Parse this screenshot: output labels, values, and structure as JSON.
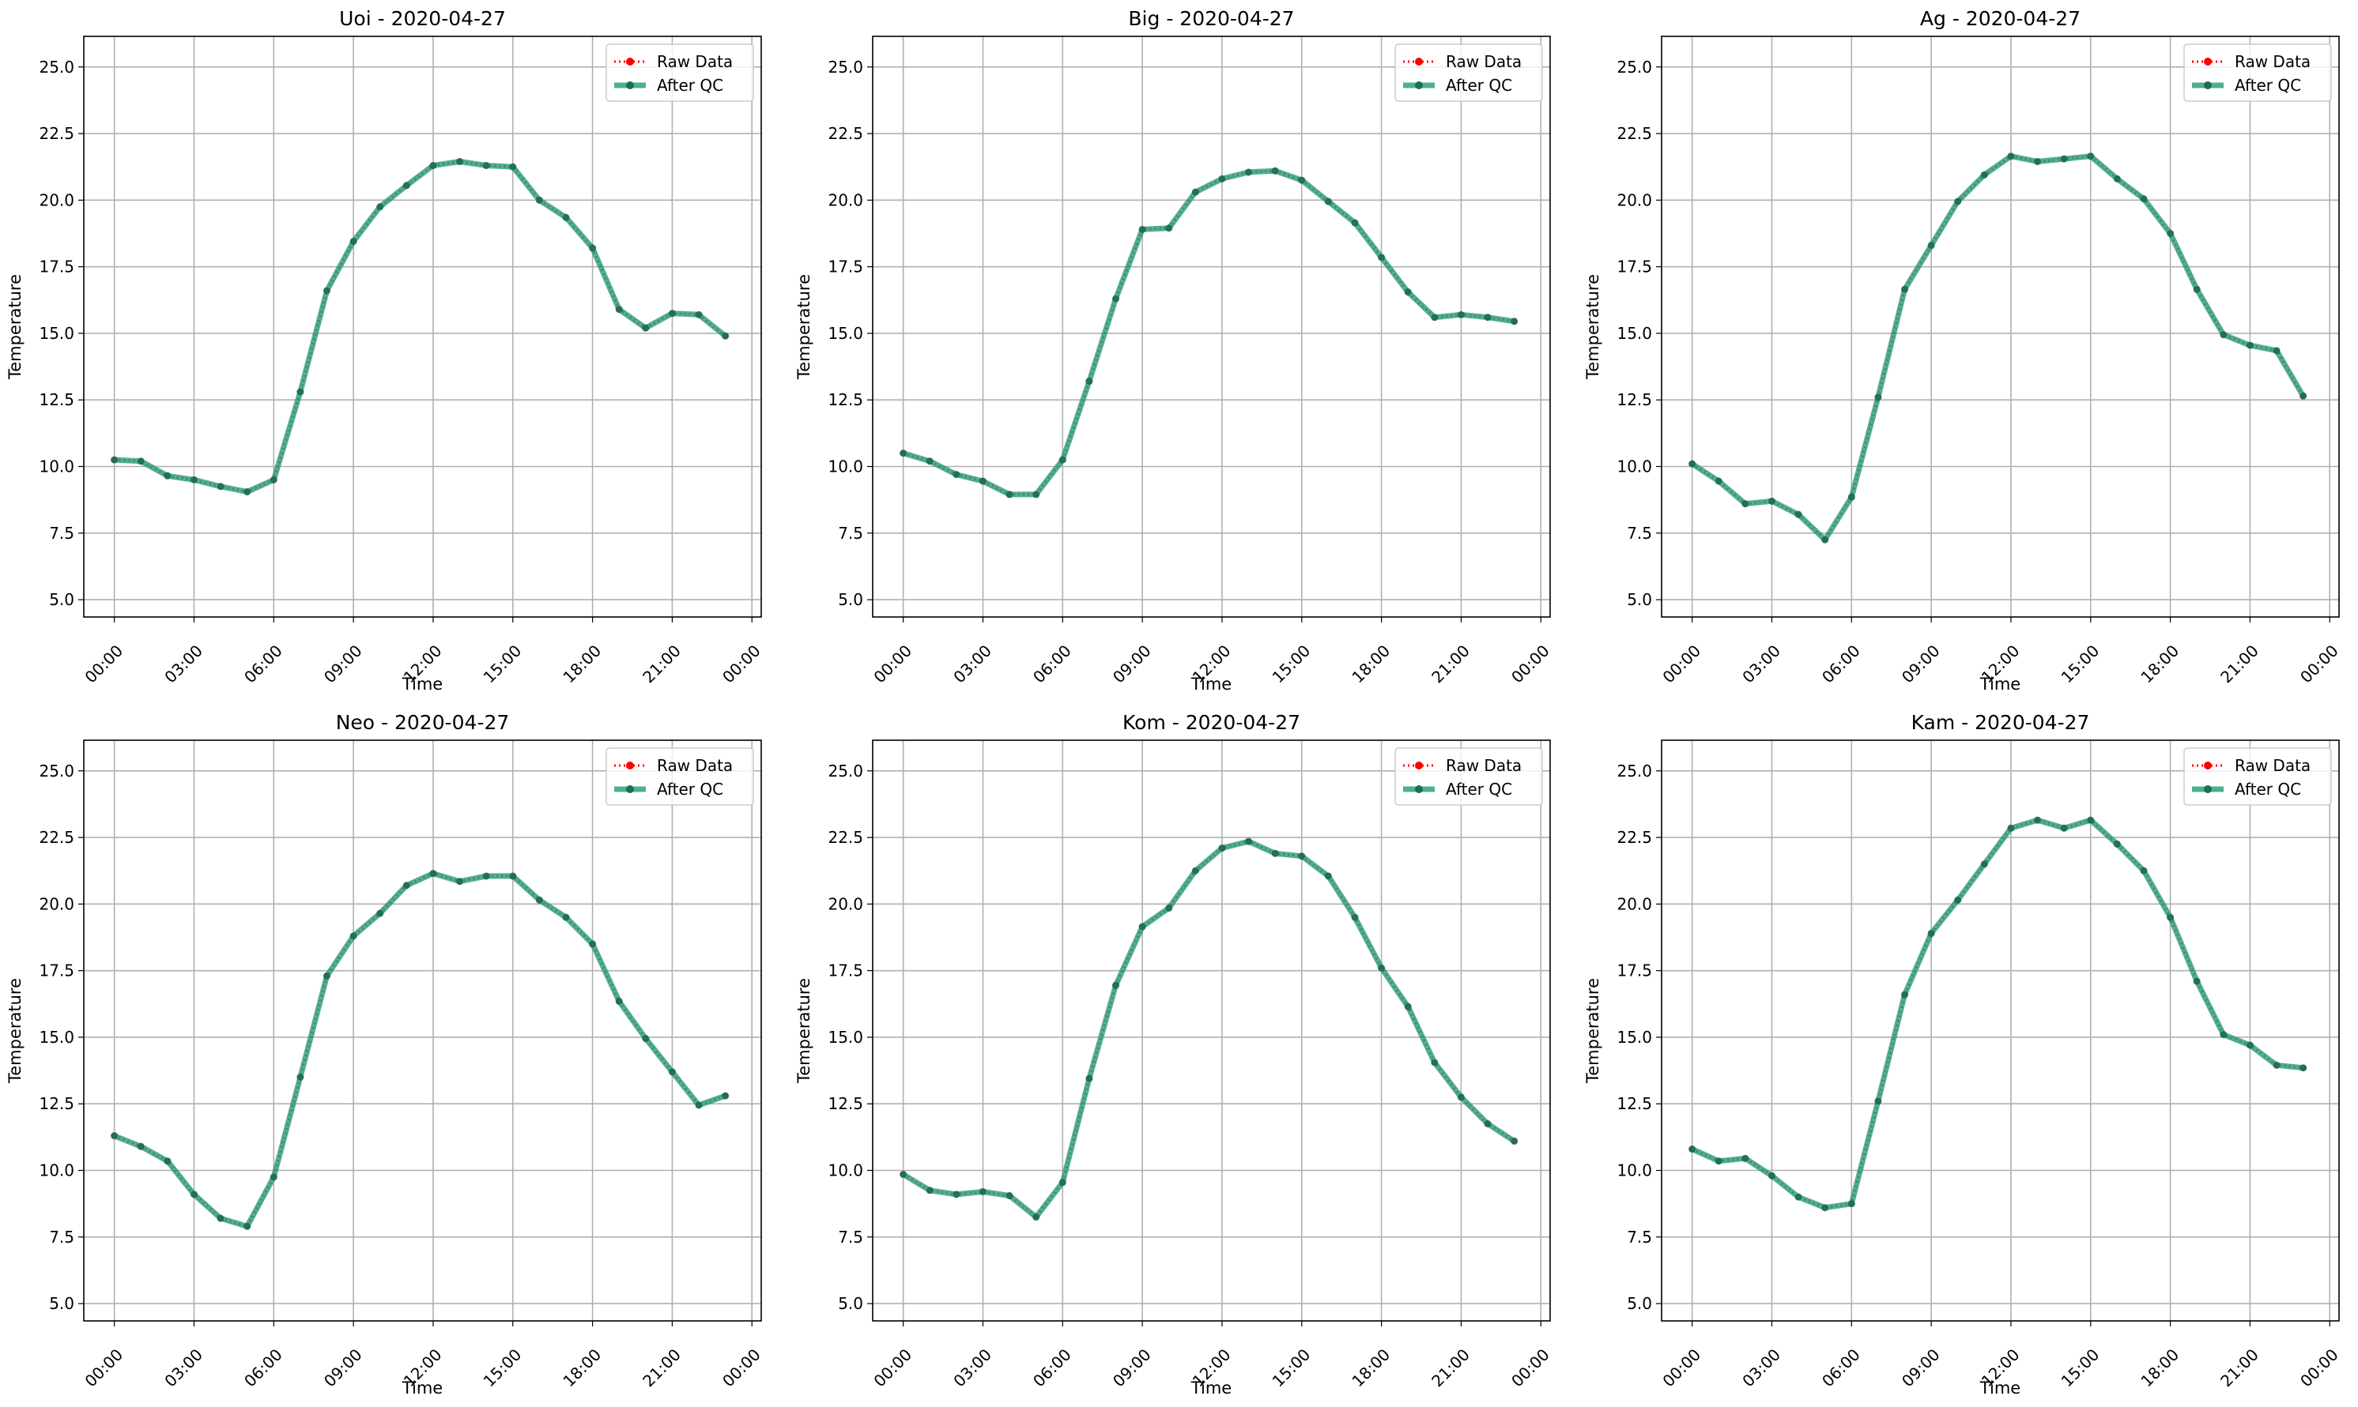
{
  "chart_data": [
    {
      "type": "line",
      "title": "Uoi - 2020-04-27",
      "xlabel": "Time",
      "ylabel": "Temperature",
      "xlim": [
        "00:00",
        "24:00"
      ],
      "ylim": [
        5.0,
        25.0
      ],
      "x_ticks": [
        "00:00",
        "03:00",
        "06:00",
        "09:00",
        "12:00",
        "15:00",
        "18:00",
        "21:00",
        "00:00"
      ],
      "y_ticks": [
        "5.0",
        "7.5",
        "10.0",
        "12.5",
        "15.0",
        "17.5",
        "20.0",
        "22.5",
        "25.0"
      ],
      "grid": true,
      "legend": "top-right",
      "x": [
        "00:00",
        "01:00",
        "02:00",
        "03:00",
        "04:00",
        "05:00",
        "06:00",
        "07:00",
        "08:00",
        "09:00",
        "10:00",
        "11:00",
        "12:00",
        "13:00",
        "14:00",
        "15:00",
        "16:00",
        "17:00",
        "18:00",
        "19:00",
        "20:00",
        "21:00",
        "22:00",
        "23:00"
      ],
      "series": [
        {
          "name": "Raw Data",
          "color": "#ff0000",
          "values": [
            10.25,
            10.2,
            9.65,
            9.5,
            9.25,
            9.05,
            9.5,
            12.8,
            16.6,
            18.45,
            19.75,
            20.55,
            21.3,
            21.45,
            21.3,
            21.25,
            20.0,
            19.35,
            18.2,
            15.9,
            15.2,
            15.75,
            15.7,
            14.9
          ]
        },
        {
          "name": "After QC",
          "color": "#2a9d78",
          "values": [
            10.25,
            10.2,
            9.65,
            9.5,
            9.25,
            9.05,
            9.5,
            12.8,
            16.6,
            18.45,
            19.75,
            20.55,
            21.3,
            21.45,
            21.3,
            21.25,
            20.0,
            19.35,
            18.2,
            15.9,
            15.2,
            15.75,
            15.7,
            14.9
          ]
        }
      ]
    },
    {
      "type": "line",
      "title": "Big - 2020-04-27",
      "xlabel": "Time",
      "ylabel": "Temperature",
      "xlim": [
        "00:00",
        "24:00"
      ],
      "ylim": [
        5.0,
        25.0
      ],
      "x_ticks": [
        "00:00",
        "03:00",
        "06:00",
        "09:00",
        "12:00",
        "15:00",
        "18:00",
        "21:00",
        "00:00"
      ],
      "y_ticks": [
        "5.0",
        "7.5",
        "10.0",
        "12.5",
        "15.0",
        "17.5",
        "20.0",
        "22.5",
        "25.0"
      ],
      "grid": true,
      "legend": "top-right",
      "x": [
        "00:00",
        "01:00",
        "02:00",
        "03:00",
        "04:00",
        "05:00",
        "06:00",
        "07:00",
        "08:00",
        "09:00",
        "10:00",
        "11:00",
        "12:00",
        "13:00",
        "14:00",
        "15:00",
        "16:00",
        "17:00",
        "18:00",
        "19:00",
        "20:00",
        "21:00",
        "22:00",
        "23:00"
      ],
      "series": [
        {
          "name": "Raw Data",
          "color": "#ff0000",
          "values": [
            10.5,
            10.2,
            9.7,
            9.45,
            8.95,
            8.95,
            10.25,
            13.2,
            16.3,
            18.9,
            18.95,
            20.3,
            20.8,
            21.05,
            21.1,
            20.75,
            19.95,
            19.15,
            17.85,
            16.55,
            15.6,
            15.7,
            15.6,
            15.45
          ]
        },
        {
          "name": "After QC",
          "color": "#2a9d78",
          "values": [
            10.5,
            10.2,
            9.7,
            9.45,
            8.95,
            8.95,
            10.25,
            13.2,
            16.3,
            18.9,
            18.95,
            20.3,
            20.8,
            21.05,
            21.1,
            20.75,
            19.95,
            19.15,
            17.85,
            16.55,
            15.6,
            15.7,
            15.6,
            15.45
          ]
        }
      ]
    },
    {
      "type": "line",
      "title": "Ag - 2020-04-27",
      "xlabel": "Time",
      "ylabel": "Temperature",
      "xlim": [
        "00:00",
        "24:00"
      ],
      "ylim": [
        5.0,
        25.0
      ],
      "x_ticks": [
        "00:00",
        "03:00",
        "06:00",
        "09:00",
        "12:00",
        "15:00",
        "18:00",
        "21:00",
        "00:00"
      ],
      "y_ticks": [
        "5.0",
        "7.5",
        "10.0",
        "12.5",
        "15.0",
        "17.5",
        "20.0",
        "22.5",
        "25.0"
      ],
      "grid": true,
      "legend": "top-right",
      "x": [
        "00:00",
        "01:00",
        "02:00",
        "03:00",
        "04:00",
        "05:00",
        "06:00",
        "07:00",
        "08:00",
        "09:00",
        "10:00",
        "11:00",
        "12:00",
        "13:00",
        "14:00",
        "15:00",
        "16:00",
        "17:00",
        "18:00",
        "19:00",
        "20:00",
        "21:00",
        "22:00",
        "23:00"
      ],
      "series": [
        {
          "name": "Raw Data",
          "color": "#ff0000",
          "values": [
            10.1,
            9.45,
            8.6,
            8.7,
            8.2,
            7.25,
            8.85,
            12.6,
            16.65,
            18.3,
            19.95,
            20.95,
            21.65,
            21.45,
            21.55,
            21.65,
            20.8,
            20.05,
            18.75,
            16.65,
            14.95,
            14.55,
            14.35,
            12.65
          ]
        },
        {
          "name": "After QC",
          "color": "#2a9d78",
          "values": [
            10.1,
            9.45,
            8.6,
            8.7,
            8.2,
            7.25,
            8.85,
            12.6,
            16.65,
            18.3,
            19.95,
            20.95,
            21.65,
            21.45,
            21.55,
            21.65,
            20.8,
            20.05,
            18.75,
            16.65,
            14.95,
            14.55,
            14.35,
            12.65
          ]
        }
      ]
    },
    {
      "type": "line",
      "title": "Neo - 2020-04-27",
      "xlabel": "Time",
      "ylabel": "Temperature",
      "xlim": [
        "00:00",
        "24:00"
      ],
      "ylim": [
        5.0,
        25.0
      ],
      "x_ticks": [
        "00:00",
        "03:00",
        "06:00",
        "09:00",
        "12:00",
        "15:00",
        "18:00",
        "21:00",
        "00:00"
      ],
      "y_ticks": [
        "5.0",
        "7.5",
        "10.0",
        "12.5",
        "15.0",
        "17.5",
        "20.0",
        "22.5",
        "25.0"
      ],
      "grid": true,
      "legend": "top-right",
      "x": [
        "00:00",
        "01:00",
        "02:00",
        "03:00",
        "04:00",
        "05:00",
        "06:00",
        "07:00",
        "08:00",
        "09:00",
        "10:00",
        "11:00",
        "12:00",
        "13:00",
        "14:00",
        "15:00",
        "16:00",
        "17:00",
        "18:00",
        "19:00",
        "20:00",
        "21:00",
        "22:00",
        "23:00"
      ],
      "series": [
        {
          "name": "Raw Data",
          "color": "#ff0000",
          "values": [
            11.3,
            10.9,
            10.35,
            9.1,
            8.2,
            7.9,
            9.75,
            13.5,
            17.3,
            18.8,
            19.65,
            20.7,
            21.15,
            20.85,
            21.05,
            21.05,
            20.15,
            19.5,
            18.5,
            16.35,
            14.95,
            13.7,
            12.45,
            12.8
          ]
        },
        {
          "name": "After QC",
          "color": "#2a9d78",
          "values": [
            11.3,
            10.9,
            10.35,
            9.1,
            8.2,
            7.9,
            9.75,
            13.5,
            17.3,
            18.8,
            19.65,
            20.7,
            21.15,
            20.85,
            21.05,
            21.05,
            20.15,
            19.5,
            18.5,
            16.35,
            14.95,
            13.7,
            12.45,
            12.8
          ]
        }
      ]
    },
    {
      "type": "line",
      "title": "Kom - 2020-04-27",
      "xlabel": "Time",
      "ylabel": "Temperature",
      "xlim": [
        "00:00",
        "24:00"
      ],
      "ylim": [
        5.0,
        25.0
      ],
      "x_ticks": [
        "00:00",
        "03:00",
        "06:00",
        "09:00",
        "12:00",
        "15:00",
        "18:00",
        "21:00",
        "00:00"
      ],
      "y_ticks": [
        "5.0",
        "7.5",
        "10.0",
        "12.5",
        "15.0",
        "17.5",
        "20.0",
        "22.5",
        "25.0"
      ],
      "grid": true,
      "legend": "top-right",
      "x": [
        "00:00",
        "01:00",
        "02:00",
        "03:00",
        "04:00",
        "05:00",
        "06:00",
        "07:00",
        "08:00",
        "09:00",
        "10:00",
        "11:00",
        "12:00",
        "13:00",
        "14:00",
        "15:00",
        "16:00",
        "17:00",
        "18:00",
        "19:00",
        "20:00",
        "21:00",
        "22:00",
        "23:00"
      ],
      "series": [
        {
          "name": "Raw Data",
          "color": "#ff0000",
          "values": [
            9.85,
            9.25,
            9.1,
            9.2,
            9.05,
            8.25,
            9.55,
            13.45,
            16.95,
            19.15,
            19.85,
            21.25,
            22.1,
            22.35,
            21.9,
            21.8,
            21.05,
            19.5,
            17.6,
            16.15,
            14.05,
            12.75,
            11.75,
            11.1
          ]
        },
        {
          "name": "After QC",
          "color": "#2a9d78",
          "values": [
            9.85,
            9.25,
            9.1,
            9.2,
            9.05,
            8.25,
            9.55,
            13.45,
            16.95,
            19.15,
            19.85,
            21.25,
            22.1,
            22.35,
            21.9,
            21.8,
            21.05,
            19.5,
            17.6,
            16.15,
            14.05,
            12.75,
            11.75,
            11.1
          ]
        }
      ]
    },
    {
      "type": "line",
      "title": "Kam - 2020-04-27",
      "xlabel": "Time",
      "ylabel": "Temperature",
      "xlim": [
        "00:00",
        "24:00"
      ],
      "ylim": [
        5.0,
        25.0
      ],
      "x_ticks": [
        "00:00",
        "03:00",
        "06:00",
        "09:00",
        "12:00",
        "15:00",
        "18:00",
        "21:00",
        "00:00"
      ],
      "y_ticks": [
        "5.0",
        "7.5",
        "10.0",
        "12.5",
        "15.0",
        "17.5",
        "20.0",
        "22.5",
        "25.0"
      ],
      "grid": true,
      "legend": "top-right",
      "x": [
        "00:00",
        "01:00",
        "02:00",
        "03:00",
        "04:00",
        "05:00",
        "06:00",
        "07:00",
        "08:00",
        "09:00",
        "10:00",
        "11:00",
        "12:00",
        "13:00",
        "14:00",
        "15:00",
        "16:00",
        "17:00",
        "18:00",
        "19:00",
        "20:00",
        "21:00",
        "22:00",
        "23:00"
      ],
      "series": [
        {
          "name": "Raw Data",
          "color": "#ff0000",
          "values": [
            10.8,
            10.35,
            10.45,
            9.8,
            9.0,
            8.6,
            8.75,
            12.6,
            16.6,
            18.9,
            20.15,
            21.5,
            22.85,
            23.15,
            22.85,
            23.15,
            22.25,
            21.25,
            19.5,
            17.1,
            15.1,
            14.7,
            13.95,
            13.85
          ]
        },
        {
          "name": "After QC",
          "color": "#2a9d78",
          "values": [
            10.8,
            10.35,
            10.45,
            9.8,
            9.0,
            8.6,
            8.75,
            12.6,
            16.6,
            18.9,
            20.15,
            21.5,
            22.85,
            23.15,
            22.85,
            23.15,
            22.25,
            21.25,
            19.5,
            17.1,
            15.1,
            14.7,
            13.95,
            13.85
          ]
        }
      ]
    }
  ]
}
